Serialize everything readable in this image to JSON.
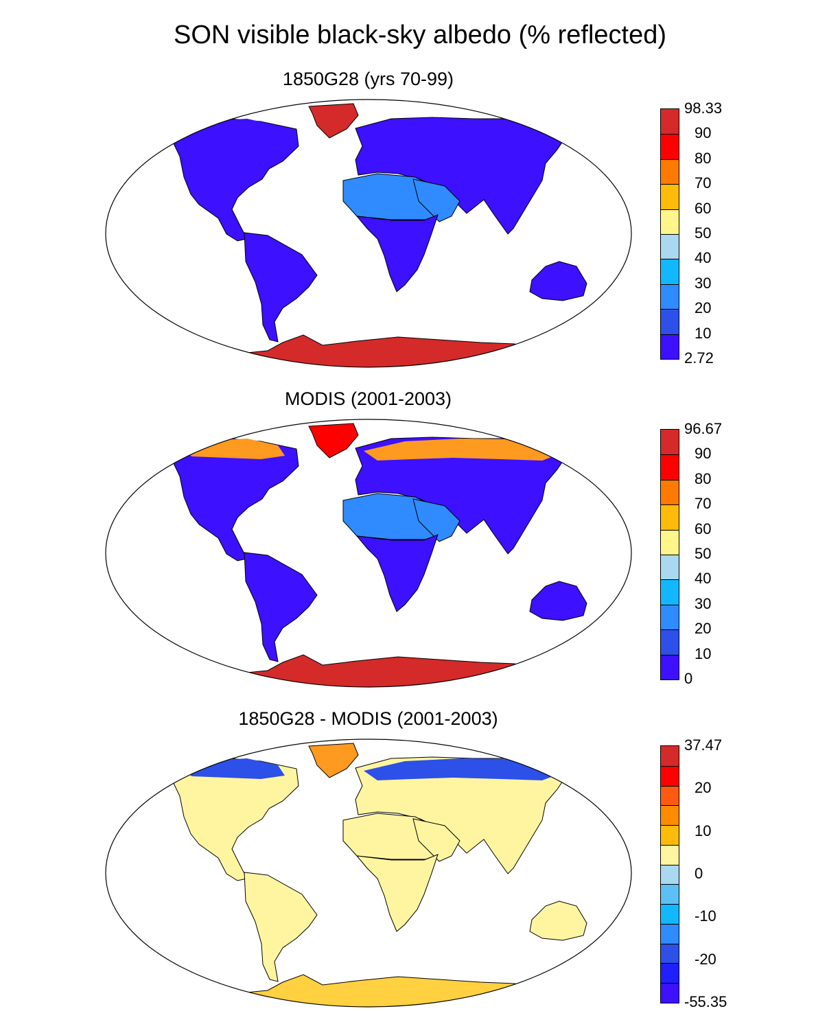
{
  "figure": {
    "title": "SON visible black-sky albedo (% reflected)"
  },
  "panels": [
    {
      "title": "1850G28 (yrs 70-99)",
      "colorbar": {
        "labels": [
          "98.33",
          "90",
          "80",
          "70",
          "60",
          "50",
          "40",
          "30",
          "20",
          "10",
          "2.72"
        ],
        "colors": [
          "#d42a2a",
          "#ff0000",
          "#ff7a00",
          "#ffbb0a",
          "#fff58a",
          "#a9d8f0",
          "#11b8ff",
          "#2f8bff",
          "#2c50e8",
          "#3d10ff"
        ]
      },
      "regions": {
        "greenland": "#d42a2a",
        "antarctica": "#d42a2a",
        "arctic_fringe": "#3d10ff",
        "north_america": "#3d10ff",
        "south_america": "#3d10ff",
        "europe_asia": "#3d10ff",
        "sahara": "#2f8bff",
        "arabia": "#2f8bff",
        "africa_south": "#3d10ff",
        "australia": "#3d10ff"
      }
    },
    {
      "title": "MODIS (2001-2003)",
      "colorbar": {
        "labels": [
          "96.67",
          "90",
          "80",
          "70",
          "60",
          "50",
          "40",
          "30",
          "20",
          "10",
          "0"
        ],
        "colors": [
          "#d42a2a",
          "#ff0000",
          "#ff7a00",
          "#ffbb0a",
          "#fff58a",
          "#a9d8f0",
          "#11b8ff",
          "#2f8bff",
          "#2c50e8",
          "#3d10ff"
        ]
      },
      "regions": {
        "greenland": "#ff0000",
        "antarctica": "#d42a2a",
        "arctic_fringe": "#ff9a20",
        "north_america": "#3d10ff",
        "south_america": "#3d10ff",
        "europe_asia": "#3d10ff",
        "sahara": "#2f8bff",
        "arabia": "#2f8bff",
        "africa_south": "#3d10ff",
        "australia": "#3d10ff"
      }
    },
    {
      "title": "1850G28 - MODIS (2001-2003)",
      "colorbar": {
        "labels": [
          "37.47",
          "20",
          "10",
          "0",
          "-10",
          "-20",
          "-55.35"
        ],
        "colors": [
          "#d42a2a",
          "#ff0000",
          "#ff5a10",
          "#ff8c00",
          "#ffbb0a",
          "#fff5a0",
          "#a9d8f0",
          "#5cc0f5",
          "#11b8ff",
          "#2f8bff",
          "#2c50e8",
          "#2020ff",
          "#3d10ff"
        ]
      },
      "regions": {
        "greenland": "#ff9a20",
        "antarctica": "#ffd040",
        "arctic_fringe": "#2c50e8",
        "north_america": "#fff5a0",
        "south_america": "#fff5a0",
        "europe_asia": "#fff5a0",
        "sahara": "#fff5a0",
        "arabia": "#fff5a0",
        "africa_south": "#fff5a0",
        "australia": "#fff5a0"
      }
    }
  ]
}
